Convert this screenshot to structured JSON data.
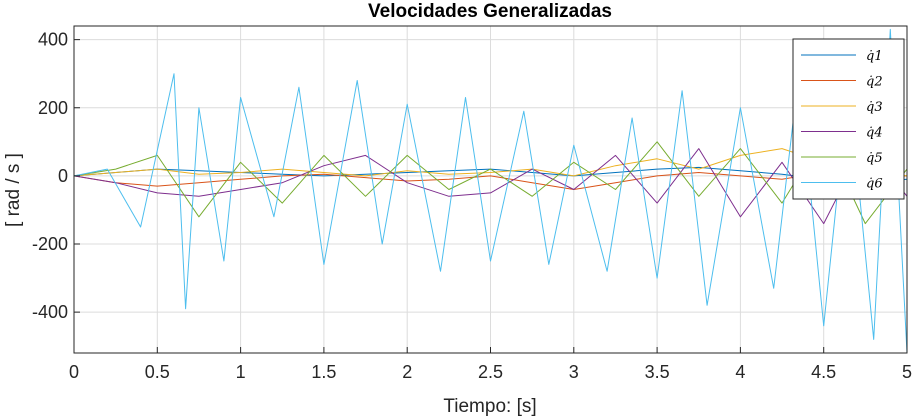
{
  "chart_data": {
    "type": "line",
    "title": "Velocidades Generalizadas",
    "xlabel": "Tiempo: [s]",
    "ylabel": "[ rad / s ]",
    "xlim": [
      0,
      5
    ],
    "ylim": [
      -520,
      440
    ],
    "xticks": [
      0,
      0.5,
      1,
      1.5,
      2,
      2.5,
      3,
      3.5,
      4,
      4.5,
      5
    ],
    "xtick_labels": [
      "0",
      "0.5",
      "1",
      "1.5",
      "2",
      "2.5",
      "3",
      "3.5",
      "4",
      "4.5",
      "5"
    ],
    "yticks": [
      -400,
      -200,
      0,
      200,
      400
    ],
    "ytick_labels": [
      "-400",
      "-200",
      "0",
      "200",
      "400"
    ],
    "grid": true,
    "legend_position": "top-right",
    "series": [
      {
        "name": "q̇1",
        "color": "#0072BD",
        "x": [
          0,
          0.25,
          0.5,
          0.75,
          1,
          1.25,
          1.5,
          1.75,
          2,
          2.25,
          2.5,
          2.75,
          3,
          3.25,
          3.5,
          3.75,
          4,
          4.25,
          4.5,
          4.75,
          5
        ],
        "y": [
          0,
          10,
          20,
          15,
          10,
          5,
          0,
          5,
          10,
          15,
          20,
          10,
          0,
          10,
          20,
          25,
          15,
          5,
          -10,
          -20,
          -10
        ]
      },
      {
        "name": "q̇2",
        "color": "#D95319",
        "x": [
          0,
          0.25,
          0.5,
          0.75,
          1,
          1.25,
          1.5,
          1.75,
          2,
          2.25,
          2.5,
          2.75,
          3,
          3.25,
          3.5,
          3.75,
          4,
          4.25,
          4.5,
          4.75,
          5
        ],
        "y": [
          0,
          -20,
          -30,
          -20,
          -10,
          0,
          5,
          -5,
          -15,
          -10,
          0,
          -20,
          -40,
          -20,
          0,
          10,
          0,
          -10,
          10,
          0,
          0
        ]
      },
      {
        "name": "q̇3",
        "color": "#EDB120",
        "x": [
          0,
          0.25,
          0.5,
          0.75,
          1,
          1.25,
          1.5,
          1.75,
          2,
          2.25,
          2.5,
          2.75,
          3,
          3.25,
          3.5,
          3.75,
          4,
          4.25,
          4.5,
          4.75,
          5
        ],
        "y": [
          0,
          10,
          20,
          5,
          10,
          20,
          10,
          0,
          15,
          5,
          10,
          20,
          0,
          30,
          50,
          20,
          60,
          80,
          40,
          20,
          0
        ]
      },
      {
        "name": "q̇4",
        "color": "#7E2F8E",
        "x": [
          0,
          0.25,
          0.5,
          0.75,
          1,
          1.25,
          1.5,
          1.75,
          2,
          2.25,
          2.5,
          2.75,
          3,
          3.25,
          3.5,
          3.75,
          4,
          4.25,
          4.5,
          4.75,
          5
        ],
        "y": [
          0,
          -20,
          -50,
          -60,
          -40,
          -20,
          30,
          60,
          -20,
          -60,
          -50,
          20,
          -40,
          60,
          -80,
          80,
          -120,
          40,
          -140,
          100,
          -60
        ]
      },
      {
        "name": "q̇5",
        "color": "#77AC30",
        "x": [
          0,
          0.25,
          0.5,
          0.75,
          1,
          1.25,
          1.5,
          1.75,
          2,
          2.25,
          2.5,
          2.75,
          3,
          3.25,
          3.5,
          3.75,
          4,
          4.25,
          4.5,
          4.75,
          5
        ],
        "y": [
          0,
          20,
          60,
          -120,
          40,
          -80,
          60,
          -60,
          60,
          -40,
          20,
          -60,
          40,
          -40,
          100,
          -60,
          80,
          -80,
          120,
          -140,
          20
        ]
      },
      {
        "name": "q̇6",
        "color": "#4DBEEE",
        "x": [
          0,
          0.2,
          0.4,
          0.6,
          0.67,
          0.75,
          0.9,
          1,
          1.2,
          1.35,
          1.5,
          1.7,
          1.85,
          2,
          2.2,
          2.35,
          2.5,
          2.7,
          2.85,
          3,
          3.2,
          3.35,
          3.5,
          3.65,
          3.8,
          4,
          4.2,
          4.35,
          4.5,
          4.65,
          4.8,
          4.9,
          5
        ],
        "y": [
          0,
          20,
          -150,
          300,
          -390,
          200,
          -250,
          230,
          -120,
          260,
          -260,
          280,
          -200,
          210,
          -280,
          230,
          -250,
          190,
          -260,
          90,
          -280,
          170,
          -300,
          250,
          -380,
          200,
          -330,
          300,
          -440,
          270,
          -480,
          430,
          -520
        ]
      }
    ]
  }
}
